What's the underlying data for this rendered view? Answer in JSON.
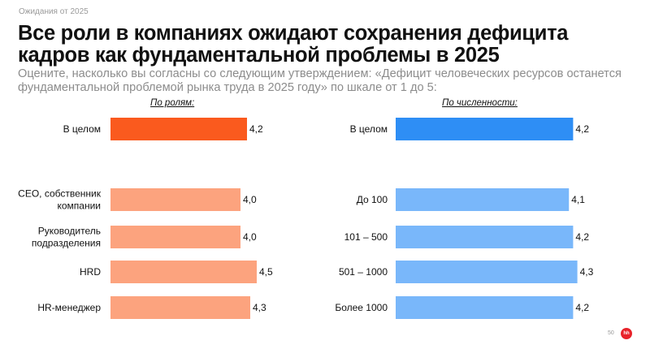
{
  "header_tag": "Ожидания от 2025",
  "title": "Все роли в компаниях ожидают сохранения дефицита кадров как фундаментальной проблемы в 2025",
  "subtitle": "Оцените, насколько вы согласны со следующим утверждением: «Дефицит человеческих ресурсов останется фундаментальной проблемой рынка труда в 2025 году» по шкале от 1 до 5:",
  "page_number": "50",
  "logo_text": "hh",
  "colors": {
    "left_highlight": "#fa5a1e",
    "left_bars": "#fca37e",
    "right_highlight": "#2e8ef5",
    "right_bars": "#79b7fa"
  },
  "chart_data": [
    {
      "type": "bar",
      "orientation": "horizontal",
      "title": "По ролям:",
      "categories": [
        "В целом",
        "CEO, собственник компании",
        "Руководитель подразделения",
        "HRD",
        "HR-менеджер"
      ],
      "values": [
        4.2,
        4.0,
        4.0,
        4.5,
        4.3
      ],
      "value_labels": [
        "4,2",
        "4,0",
        "4,0",
        "4,5",
        "4,3"
      ],
      "xlim": [
        0,
        5
      ],
      "grid": false,
      "legend": "none"
    },
    {
      "type": "bar",
      "orientation": "horizontal",
      "title": "По численности:",
      "categories": [
        "В целом",
        "До 100",
        "101 – 500",
        "501 – 1000",
        "Более 1000"
      ],
      "values": [
        4.2,
        4.1,
        4.2,
        4.3,
        4.2
      ],
      "value_labels": [
        "4,2",
        "4,1",
        "4,2",
        "4,3",
        "4,2"
      ],
      "xlim": [
        0,
        5
      ],
      "grid": false,
      "legend": "none"
    }
  ]
}
